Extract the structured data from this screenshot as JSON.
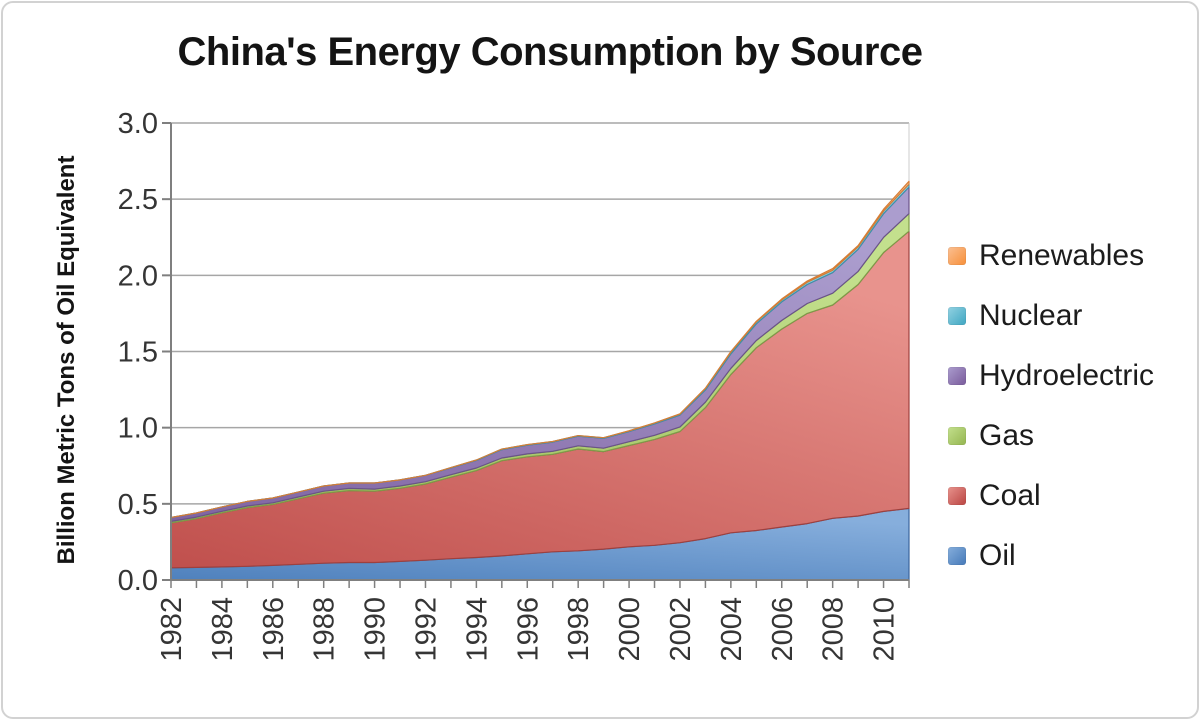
{
  "chart_data": {
    "type": "area",
    "stacked": true,
    "title": "China's Energy Consumption by Source",
    "ylabel": "Billion Metric Tons of Oil Equivalent",
    "xlabel": "",
    "ylim": [
      0,
      3.0
    ],
    "grid": "horizontal",
    "legend_position": "right",
    "y_tick_labels": [
      "0.0",
      "0.5",
      "1.0",
      "1.5",
      "2.0",
      "2.5",
      "3.0"
    ],
    "x": [
      1982,
      1983,
      1984,
      1985,
      1986,
      1987,
      1988,
      1989,
      1990,
      1991,
      1992,
      1993,
      1994,
      1995,
      1996,
      1997,
      1998,
      1999,
      2000,
      2001,
      2002,
      2003,
      2004,
      2005,
      2006,
      2007,
      2008,
      2009,
      2010,
      2011
    ],
    "x_tick_labels": [
      "1982",
      "1984",
      "1986",
      "1988",
      "1990",
      "1992",
      "1994",
      "1996",
      "1998",
      "2000",
      "2002",
      "2004",
      "2006",
      "2008",
      "2010"
    ],
    "series": [
      {
        "id": "oil",
        "name": "Oil",
        "color": "#4F81BD",
        "color_light": "#86AEDC",
        "color_edge": "#3A649C",
        "values": [
          0.08,
          0.083,
          0.086,
          0.09,
          0.096,
          0.103,
          0.11,
          0.115,
          0.115,
          0.122,
          0.13,
          0.14,
          0.148,
          0.158,
          0.172,
          0.185,
          0.192,
          0.203,
          0.218,
          0.228,
          0.245,
          0.272,
          0.31,
          0.325,
          0.348,
          0.37,
          0.405,
          0.42,
          0.45,
          0.47
        ]
      },
      {
        "id": "coal",
        "name": "Coal",
        "color": "#C0504D",
        "color_light": "#E8938D",
        "color_edge": "#9E403E",
        "values": [
          0.295,
          0.32,
          0.355,
          0.385,
          0.4,
          0.43,
          0.46,
          0.472,
          0.468,
          0.48,
          0.5,
          0.535,
          0.57,
          0.625,
          0.637,
          0.64,
          0.668,
          0.64,
          0.665,
          0.695,
          0.73,
          0.86,
          1.04,
          1.2,
          1.3,
          1.38,
          1.4,
          1.52,
          1.7,
          1.82
        ]
      },
      {
        "id": "gas",
        "name": "Gas",
        "color": "#9BBB59",
        "color_light": "#C3E08D",
        "color_edge": "#7E9B48",
        "values": [
          0.01,
          0.01,
          0.01,
          0.011,
          0.011,
          0.012,
          0.013,
          0.014,
          0.014,
          0.015,
          0.015,
          0.016,
          0.017,
          0.018,
          0.019,
          0.02,
          0.021,
          0.022,
          0.025,
          0.027,
          0.03,
          0.035,
          0.04,
          0.047,
          0.056,
          0.065,
          0.078,
          0.086,
          0.1,
          0.115
        ]
      },
      {
        "id": "hydroelectric",
        "name": "Hydroelectric",
        "color": "#8064A2",
        "color_light": "#AB9DCE",
        "color_edge": "#6A5388",
        "values": [
          0.025,
          0.027,
          0.029,
          0.03,
          0.031,
          0.032,
          0.034,
          0.036,
          0.04,
          0.04,
          0.042,
          0.045,
          0.05,
          0.055,
          0.057,
          0.06,
          0.063,
          0.065,
          0.067,
          0.075,
          0.078,
          0.08,
          0.095,
          0.11,
          0.122,
          0.125,
          0.135,
          0.145,
          0.155,
          0.175
        ]
      },
      {
        "id": "nuclear",
        "name": "Nuclear",
        "color": "#4BACC6",
        "color_light": "#93D2E2",
        "color_edge": "#3E92A8",
        "values": [
          0,
          0,
          0,
          0,
          0,
          0,
          0,
          0,
          0,
          0,
          0,
          0.002,
          0.003,
          0.003,
          0.004,
          0.004,
          0.004,
          0.004,
          0.004,
          0.005,
          0.006,
          0.01,
          0.012,
          0.012,
          0.013,
          0.015,
          0.016,
          0.016,
          0.017,
          0.019
        ]
      },
      {
        "id": "renewables",
        "name": "Renewables",
        "color": "#F79646",
        "color_light": "#FBC093",
        "color_edge": "#D67D35",
        "values": [
          0,
          0,
          0,
          0,
          0,
          0,
          0,
          0,
          0,
          0,
          0,
          0,
          0,
          0,
          0,
          0,
          0,
          0,
          0.001,
          0.001,
          0.002,
          0.002,
          0.003,
          0.004,
          0.006,
          0.008,
          0.01,
          0.008,
          0.012,
          0.018
        ]
      }
    ],
    "legend_order": [
      "renewables",
      "nuclear",
      "hydroelectric",
      "gas",
      "coal",
      "oil"
    ]
  }
}
